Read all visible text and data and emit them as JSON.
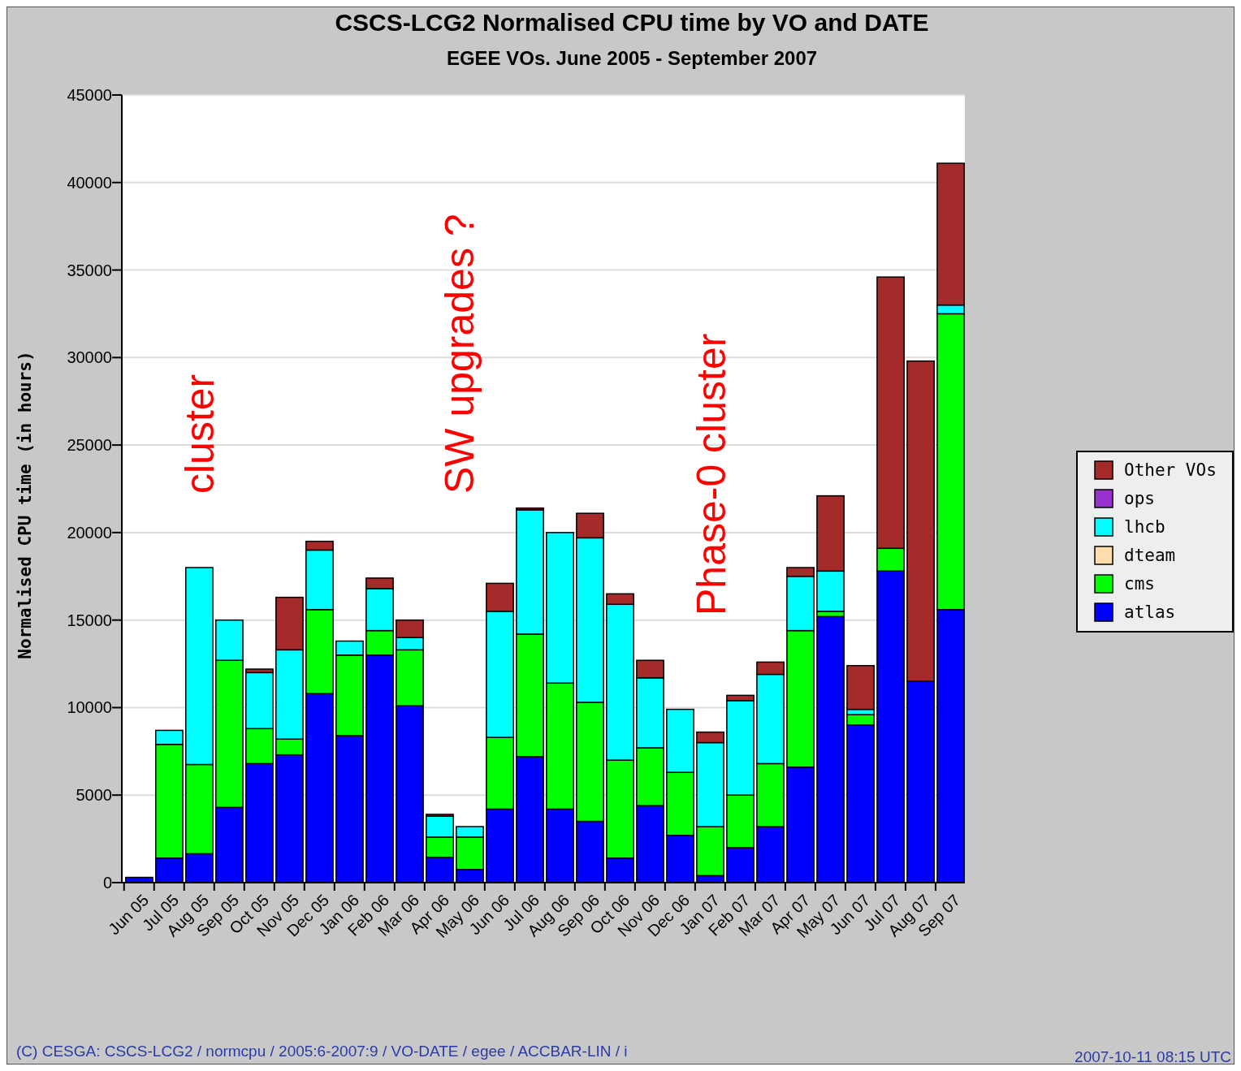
{
  "chart_data": {
    "type": "bar",
    "stacked": true,
    "title": "CSCS-LCG2 Normalised CPU time by VO and DATE",
    "subtitle": "EGEE VOs. June 2005 - September 2007",
    "ylabel": "Normalised CPU time (in hours)",
    "categories": [
      "Jun 05",
      "Jul 05",
      "Aug 05",
      "Sep 05",
      "Oct 05",
      "Nov 05",
      "Dec 05",
      "Jan 06",
      "Feb 06",
      "Mar 06",
      "Apr 06",
      "May 06",
      "Jun 06",
      "Jul 06",
      "Aug 06",
      "Sep 06",
      "Oct 06",
      "Nov 06",
      "Dec 06",
      "Jan 07",
      "Feb 07",
      "Mar 07",
      "Apr 07",
      "May 07",
      "Jun 07",
      "Jul 07",
      "Aug 07",
      "Sep 07"
    ],
    "series": [
      {
        "name": "atlas",
        "color": "#0000ff",
        "values": [
          300,
          1400,
          1650,
          4300,
          6800,
          7300,
          10800,
          8400,
          13000,
          10100,
          1450,
          750,
          4200,
          7200,
          4200,
          3500,
          1400,
          4400,
          2700,
          400,
          2000,
          3200,
          6600,
          15200,
          9000,
          17800,
          11500,
          15600
        ]
      },
      {
        "name": "cms",
        "color": "#00ff00",
        "values": [
          0,
          6500,
          5100,
          8400,
          2000,
          900,
          4800,
          4600,
          1400,
          3200,
          1150,
          1850,
          4100,
          7000,
          7200,
          6800,
          5600,
          3300,
          3600,
          2800,
          3000,
          3600,
          7800,
          300,
          600,
          1300,
          0,
          16900
        ]
      },
      {
        "name": "dteam",
        "color": "#ffdead",
        "values": [
          0,
          0,
          0,
          0,
          0,
          0,
          0,
          0,
          0,
          0,
          0,
          0,
          0,
          0,
          0,
          0,
          0,
          0,
          0,
          0,
          0,
          0,
          0,
          0,
          0,
          0,
          0,
          0
        ]
      },
      {
        "name": "lhcb",
        "color": "#00ffff",
        "values": [
          0,
          800,
          11250,
          2300,
          3200,
          5100,
          3400,
          800,
          2400,
          700,
          1200,
          600,
          7200,
          7100,
          8600,
          9400,
          8900,
          4000,
          3600,
          4800,
          5400,
          5100,
          3100,
          2300,
          300,
          0,
          0,
          500
        ]
      },
      {
        "name": "ops",
        "color": "#9932cc",
        "values": [
          0,
          0,
          0,
          0,
          0,
          0,
          0,
          0,
          0,
          0,
          0,
          0,
          0,
          0,
          0,
          0,
          0,
          0,
          0,
          0,
          0,
          0,
          0,
          0,
          0,
          0,
          0,
          0
        ]
      },
      {
        "name": "Other VOs",
        "color": "#a52a2a",
        "values": [
          0,
          0,
          0,
          0,
          200,
          3000,
          500,
          0,
          600,
          1000,
          100,
          0,
          1600,
          100,
          0,
          1400,
          600,
          1000,
          0,
          600,
          300,
          700,
          500,
          4300,
          2500,
          15500,
          18300,
          8100
        ]
      }
    ],
    "ylim": [
      0,
      45000
    ],
    "yticks": [
      0,
      5000,
      10000,
      15000,
      20000,
      25000,
      30000,
      35000,
      40000,
      45000
    ],
    "grid": "y",
    "legend": "right",
    "annotations": [
      "cluster",
      "SW upgrades ?",
      "Phase-0 cluster",
      "(C) CESGA: CSCS-LCG2 / normcpu / 2005:6-2007:9 / VO-DATE / egee / ACCBAR-LIN / i",
      "2007-10-11 08:15 UTC"
    ]
  }
}
